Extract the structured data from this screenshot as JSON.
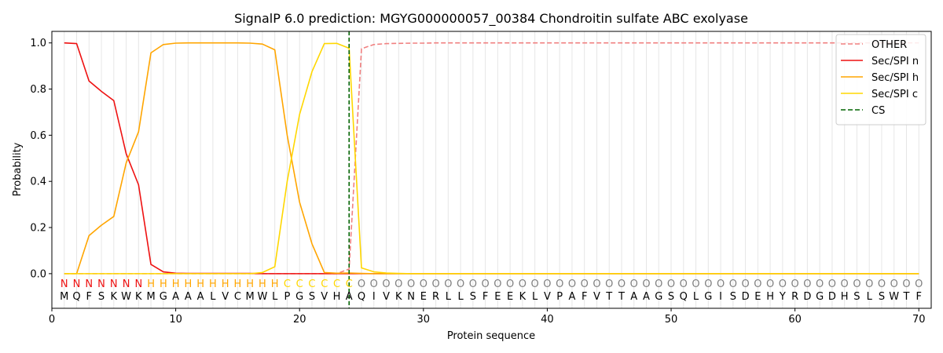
{
  "chart_data": {
    "type": "line",
    "title": "SignalP 6.0 prediction: MGYG000000057_00384 Chondroitin sulfate ABC exolyase",
    "xlabel": "Protein sequence",
    "ylabel": "Probability",
    "xlim": [
      0,
      71
    ],
    "ylim": [
      -0.15,
      1.05
    ],
    "xticks": [
      0,
      10,
      20,
      30,
      40,
      50,
      60,
      70
    ],
    "yticks": [
      0.0,
      0.2,
      0.4,
      0.6,
      0.8,
      1.0
    ],
    "xtick_labels": [
      "0",
      "10",
      "20",
      "30",
      "40",
      "50",
      "60",
      "70"
    ],
    "ytick_labels": [
      "0.0",
      "0.2",
      "0.4",
      "0.6",
      "0.8",
      "1.0"
    ],
    "grid": "vertical lines at each residue",
    "legend_position": "top-right",
    "sequence": [
      "M",
      "Q",
      "F",
      "S",
      "K",
      "W",
      "K",
      "M",
      "G",
      "A",
      "A",
      "A",
      "L",
      "V",
      "C",
      "M",
      "W",
      "L",
      "P",
      "G",
      "S",
      "V",
      "H",
      "A",
      "Q",
      "I",
      "V",
      "K",
      "N",
      "E",
      "R",
      "L",
      "L",
      "S",
      "F",
      "E",
      "E",
      "K",
      "L",
      "V",
      "P",
      "A",
      "F",
      "V",
      "T",
      "T",
      "A",
      "A",
      "G",
      "S",
      "Q",
      "L",
      "G",
      "I",
      "S",
      "D",
      "E",
      "H",
      "Y",
      "R",
      "D",
      "G",
      "D",
      "H",
      "S",
      "L",
      "S",
      "W",
      "T",
      "F"
    ],
    "region_labels": [
      "N",
      "N",
      "N",
      "N",
      "N",
      "N",
      "N",
      "H",
      "H",
      "H",
      "H",
      "H",
      "H",
      "H",
      "H",
      "H",
      "H",
      "H",
      "C",
      "C",
      "C",
      "C",
      "C",
      "C",
      "O",
      "O",
      "O",
      "O",
      "O",
      "O",
      "O",
      "O",
      "O",
      "O",
      "O",
      "O",
      "O",
      "O",
      "O",
      "O",
      "O",
      "O",
      "O",
      "O",
      "O",
      "O",
      "O",
      "O",
      "O",
      "O",
      "O",
      "O",
      "O",
      "O",
      "O",
      "O",
      "O",
      "O",
      "O",
      "O",
      "O",
      "O",
      "O",
      "O",
      "O",
      "O",
      "O",
      "O",
      "O",
      "O"
    ],
    "region_colors": {
      "N": "#ee1111",
      "H": "#ffa500",
      "C": "#ffd700",
      "O": "#808080"
    },
    "cleavage_site": 24,
    "x": [
      1,
      2,
      3,
      4,
      5,
      6,
      7,
      8,
      9,
      10,
      11,
      12,
      13,
      14,
      15,
      16,
      17,
      18,
      19,
      20,
      21,
      22,
      23,
      24,
      25,
      26,
      27,
      28,
      29,
      30,
      31,
      32,
      33,
      34,
      35,
      36,
      37,
      38,
      39,
      40,
      41,
      42,
      43,
      44,
      45,
      46,
      47,
      48,
      49,
      50,
      51,
      52,
      53,
      54,
      55,
      56,
      57,
      58,
      59,
      60,
      61,
      62,
      63,
      64,
      65,
      66,
      67,
      68,
      69,
      70
    ],
    "series": [
      {
        "name": "OTHER",
        "color": "#f08080",
        "dash": true,
        "values": [
          0,
          0,
          0,
          0,
          0,
          0,
          0,
          0,
          0,
          0,
          0,
          0,
          0,
          0,
          0,
          0,
          0,
          0,
          0,
          0,
          0,
          0,
          0,
          0.02,
          0.975,
          0.993,
          0.997,
          0.998,
          0.999,
          0.999,
          1,
          1,
          1,
          1,
          1,
          1,
          1,
          1,
          1,
          1,
          1,
          1,
          1,
          1,
          1,
          1,
          1,
          1,
          1,
          1,
          1,
          1,
          1,
          1,
          1,
          1,
          1,
          1,
          1,
          1,
          1,
          1,
          1,
          1,
          1,
          1,
          1,
          1,
          1,
          1
        ]
      },
      {
        "name": "Sec/SPI n",
        "color": "#ee1111",
        "dash": false,
        "values": [
          1.0,
          0.997,
          0.835,
          0.79,
          0.75,
          0.52,
          0.385,
          0.04,
          0.008,
          0.002,
          0.001,
          0.001,
          0.001,
          0.001,
          0.001,
          0.001,
          0,
          0,
          0,
          0,
          0,
          0,
          0,
          0,
          0,
          0,
          0,
          0,
          0,
          0,
          0,
          0,
          0,
          0,
          0,
          0,
          0,
          0,
          0,
          0,
          0,
          0,
          0,
          0,
          0,
          0,
          0,
          0,
          0,
          0,
          0,
          0,
          0,
          0,
          0,
          0,
          0,
          0,
          0,
          0,
          0,
          0,
          0,
          0,
          0,
          0,
          0,
          0,
          0,
          0
        ]
      },
      {
        "name": "Sec/SPI h",
        "color": "#ffa500",
        "dash": false,
        "values": [
          0,
          0,
          0.165,
          0.21,
          0.248,
          0.48,
          0.615,
          0.957,
          0.993,
          0.999,
          1.0,
          1.0,
          1.0,
          1.0,
          1.0,
          0.999,
          0.995,
          0.97,
          0.6,
          0.31,
          0.13,
          0.005,
          0.002,
          0.003,
          0.001,
          0,
          0,
          0,
          0,
          0,
          0,
          0,
          0,
          0,
          0,
          0,
          0,
          0,
          0,
          0,
          0,
          0,
          0,
          0,
          0,
          0,
          0,
          0,
          0,
          0,
          0,
          0,
          0,
          0,
          0,
          0,
          0,
          0,
          0,
          0,
          0,
          0,
          0,
          0,
          0,
          0,
          0,
          0,
          0,
          0
        ]
      },
      {
        "name": "Sec/SPI c",
        "color": "#ffd700",
        "dash": false,
        "values": [
          0,
          0,
          0,
          0,
          0,
          0,
          0,
          0,
          0,
          0,
          0,
          0,
          0,
          0,
          0,
          0,
          0.005,
          0.03,
          0.4,
          0.69,
          0.875,
          0.997,
          0.998,
          0.977,
          0.025,
          0.008,
          0.003,
          0.001,
          0,
          0,
          0,
          0,
          0,
          0,
          0,
          0,
          0,
          0,
          0,
          0,
          0,
          0,
          0,
          0,
          0,
          0,
          0,
          0,
          0,
          0,
          0,
          0,
          0,
          0,
          0,
          0,
          0,
          0,
          0,
          0,
          0,
          0,
          0,
          0,
          0,
          0,
          0,
          0,
          0,
          0
        ]
      }
    ],
    "legend": [
      {
        "label": "OTHER",
        "color": "#f08080",
        "dash": true
      },
      {
        "label": "Sec/SPI n",
        "color": "#ee1111",
        "dash": false
      },
      {
        "label": "Sec/SPI h",
        "color": "#ffa500",
        "dash": false
      },
      {
        "label": "Sec/SPI c",
        "color": "#ffd700",
        "dash": false
      },
      {
        "label": "CS",
        "color": "#006400",
        "dash": true
      }
    ]
  }
}
